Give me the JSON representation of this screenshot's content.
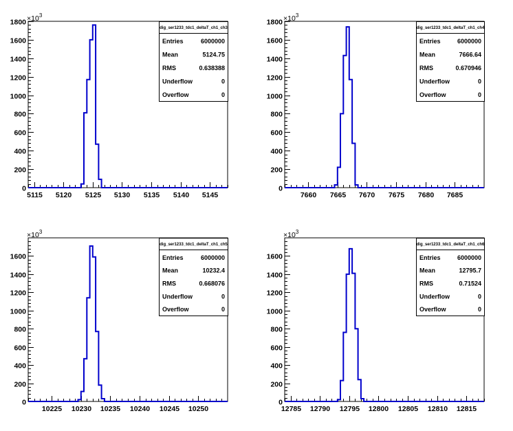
{
  "chart_data": [
    {
      "type": "bar",
      "title": "",
      "xlabel": "",
      "ylabel": "",
      "y_exponent": "3",
      "xlim": [
        5114,
        5148
      ],
      "ylim": [
        0,
        1800
      ],
      "xticks": [
        5115,
        5120,
        5125,
        5130,
        5135,
        5140,
        5145
      ],
      "yticks": [
        0,
        200,
        400,
        600,
        800,
        1000,
        1200,
        1400,
        1600,
        1800
      ],
      "bin_edges": [
        5122,
        5123,
        5123.5,
        5124,
        5124.5,
        5125,
        5125.5,
        5126,
        5126.5,
        5127
      ],
      "values": [
        0,
        40,
        810,
        1170,
        1600,
        1760,
        470,
        90,
        0
      ],
      "line_color": "#0000cc",
      "stats": {
        "name": "dig_ser1233_tdc1_deltaT_ch1_ch3",
        "rows": [
          {
            "label": "Entries",
            "value": "6000000"
          },
          {
            "label": "Mean",
            "value": "5124.75"
          },
          {
            "label": "RMS",
            "value": "0.638388"
          },
          {
            "label": "Underflow",
            "value": "0"
          },
          {
            "label": "Overflow",
            "value": "0"
          }
        ]
      }
    },
    {
      "type": "bar",
      "title": "",
      "xlabel": "",
      "ylabel": "",
      "y_exponent": "3",
      "xlim": [
        7656,
        7690
      ],
      "ylim": [
        0,
        1800
      ],
      "xticks": [
        7660,
        7665,
        7670,
        7675,
        7680,
        7685
      ],
      "yticks": [
        0,
        200,
        400,
        600,
        800,
        1000,
        1200,
        1400,
        1600,
        1800
      ],
      "bin_edges": [
        7664.5,
        7665,
        7665.5,
        7666,
        7666.5,
        7667,
        7667.5,
        7668,
        7668.5
      ],
      "values": [
        30,
        220,
        800,
        1430,
        1740,
        1170,
        480,
        30
      ],
      "line_color": "#0000cc",
      "stats": {
        "name": "dig_ser1233_tdc1_deltaT_ch1_ch4",
        "rows": [
          {
            "label": "Entries",
            "value": "6000000"
          },
          {
            "label": "Mean",
            "value": "7666.64"
          },
          {
            "label": "RMS",
            "value": "0.670946"
          },
          {
            "label": "Underflow",
            "value": "0"
          },
          {
            "label": "Overflow",
            "value": "0"
          }
        ]
      }
    },
    {
      "type": "bar",
      "title": "",
      "xlabel": "",
      "ylabel": "",
      "y_exponent": "3",
      "xlim": [
        10221,
        10255
      ],
      "ylim": [
        0,
        1800
      ],
      "xticks": [
        10225,
        10230,
        10235,
        10240,
        10245,
        10250
      ],
      "yticks": [
        0,
        200,
        400,
        600,
        800,
        1000,
        1200,
        1400,
        1600
      ],
      "bin_edges": [
        10229.5,
        10230,
        10230.5,
        10231,
        10231.5,
        10232,
        10232.5,
        10233,
        10233.5,
        10234,
        10234.5
      ],
      "values": [
        20,
        110,
        470,
        1140,
        1710,
        1590,
        770,
        180,
        30,
        0
      ],
      "line_color": "#0000cc",
      "stats": {
        "name": "dig_ser1233_tdc1_deltaT_ch1_ch5",
        "rows": [
          {
            "label": "Entries",
            "value": "6000000"
          },
          {
            "label": "Mean",
            "value": "10232.4"
          },
          {
            "label": "RMS",
            "value": "0.668076"
          },
          {
            "label": "Underflow",
            "value": "0"
          },
          {
            "label": "Overflow",
            "value": "0"
          }
        ]
      }
    },
    {
      "type": "bar",
      "title": "",
      "xlabel": "",
      "ylabel": "",
      "y_exponent": "3",
      "xlim": [
        12784,
        12818
      ],
      "ylim": [
        0,
        1800
      ],
      "xticks": [
        12785,
        12790,
        12795,
        12800,
        12805,
        12810,
        12815
      ],
      "yticks": [
        0,
        200,
        400,
        600,
        800,
        1000,
        1200,
        1400,
        1600
      ],
      "bin_edges": [
        12793,
        12793.5,
        12794,
        12794.5,
        12795,
        12795.5,
        12796,
        12796.5,
        12797,
        12797.5
      ],
      "values": [
        20,
        230,
        760,
        1400,
        1680,
        1410,
        800,
        240,
        30
      ],
      "line_color": "#0000cc",
      "stats": {
        "name": "dig_ser1233_tdc1_deltaT_ch1_ch6",
        "rows": [
          {
            "label": "Entries",
            "value": "6000000"
          },
          {
            "label": "Mean",
            "value": "12795.7"
          },
          {
            "label": "RMS",
            "value": "0.71524"
          },
          {
            "label": "Underflow",
            "value": "0"
          },
          {
            "label": "Overflow",
            "value": "0"
          }
        ]
      }
    }
  ]
}
